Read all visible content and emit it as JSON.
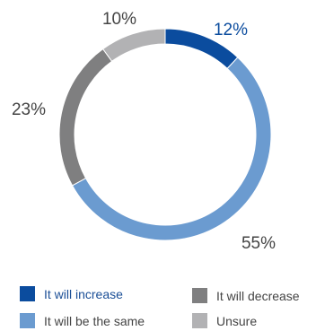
{
  "chart_data": {
    "type": "pie",
    "variant": "donut",
    "start": "top, clockwise",
    "slices": [
      {
        "label": "It will increase",
        "value": 12,
        "display": "12%",
        "color": "#0b4c9e",
        "label_color": "#0b4c9e"
      },
      {
        "label": "It will be the same",
        "value": 55,
        "display": "55%",
        "color": "#6b9bd0",
        "label_color": "#444444"
      },
      {
        "label": "It will decrease",
        "value": 23,
        "display": "23%",
        "color": "#7f7f80",
        "label_color": "#444444"
      },
      {
        "label": "Unsure",
        "value": 10,
        "display": "10%",
        "color": "#b2b2b4",
        "label_color": "#444444"
      }
    ],
    "legend_position": "bottom"
  },
  "legend": {
    "items": [
      {
        "label": "It will increase",
        "color": "#0b4c9e"
      },
      {
        "label": "It will be the same",
        "color": "#6b9bd0"
      },
      {
        "label": "It will decrease",
        "color": "#7f7f80"
      },
      {
        "label": "Unsure",
        "color": "#b2b2b4"
      }
    ]
  }
}
